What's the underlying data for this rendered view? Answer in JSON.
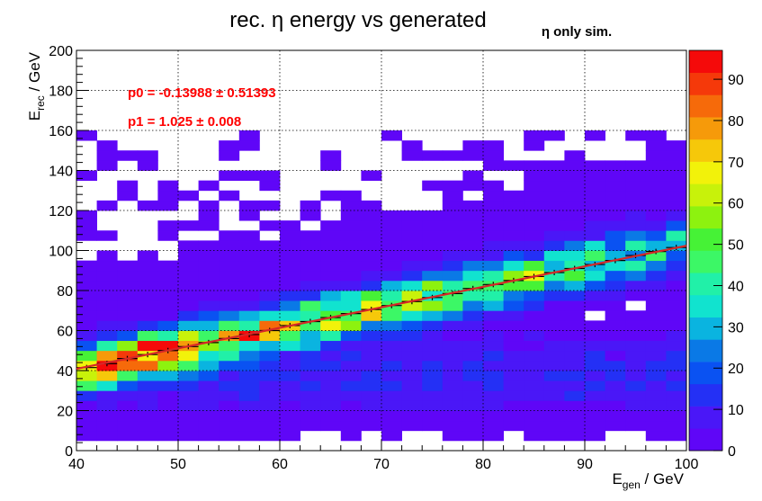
{
  "chart_data": {
    "type": "heatmap",
    "title": "rec. η energy vs generated",
    "annotation": "η only sim.",
    "xlabel": {
      "main": "E",
      "sub": "gen",
      "tail": " / GeV"
    },
    "ylabel": {
      "main": "E",
      "sub": "rec",
      "tail": " / GeV"
    },
    "xlim": [
      40,
      100
    ],
    "ylim": [
      0,
      200
    ],
    "zlim": [
      0,
      97
    ],
    "x_ticks": [
      "40",
      "50",
      "60",
      "70",
      "80",
      "90",
      "100"
    ],
    "y_ticks": [
      "0",
      "20",
      "40",
      "60",
      "80",
      "100",
      "120",
      "140",
      "160",
      "180",
      "200"
    ],
    "z_ticks": [
      "0",
      "10",
      "20",
      "30",
      "40",
      "50",
      "60",
      "70",
      "80",
      "90"
    ],
    "grid": true,
    "bins": {
      "nx": 30,
      "ny": 40
    },
    "fit": {
      "function": "pol1",
      "p0_text": "p0 = -0.13988 ± 0.51393",
      "p1_text": "p1 = 1.025 ± 0.008",
      "p0": -0.13988,
      "p1": 1.025,
      "color": "#d62728",
      "range": [
        40,
        100
      ]
    },
    "profile_points": [
      {
        "x": 41,
        "y": 41.5
      },
      {
        "x": 43,
        "y": 43.5
      },
      {
        "x": 45,
        "y": 46
      },
      {
        "x": 47,
        "y": 48
      },
      {
        "x": 49,
        "y": 50
      },
      {
        "x": 51,
        "y": 52
      },
      {
        "x": 53,
        "y": 54
      },
      {
        "x": 55,
        "y": 56
      },
      {
        "x": 57,
        "y": 58
      },
      {
        "x": 59,
        "y": 60
      },
      {
        "x": 61,
        "y": 62.5
      },
      {
        "x": 63,
        "y": 64.5
      },
      {
        "x": 65,
        "y": 66.5
      },
      {
        "x": 67,
        "y": 68.5
      },
      {
        "x": 69,
        "y": 70.5
      },
      {
        "x": 71,
        "y": 72.5
      },
      {
        "x": 73,
        "y": 74.5
      },
      {
        "x": 75,
        "y": 76.5
      },
      {
        "x": 77,
        "y": 78.5
      },
      {
        "x": 79,
        "y": 81
      },
      {
        "x": 81,
        "y": 83
      },
      {
        "x": 83,
        "y": 85
      },
      {
        "x": 85,
        "y": 87
      },
      {
        "x": 87,
        "y": 89
      },
      {
        "x": 89,
        "y": 91
      },
      {
        "x": 91,
        "y": 93
      },
      {
        "x": 93,
        "y": 95
      },
      {
        "x": 95,
        "y": 97.5
      },
      {
        "x": 97,
        "y": 99.5
      },
      {
        "x": 99,
        "y": 101.5
      }
    ],
    "palette": [
      "#5f06f7",
      "#4a17f7",
      "#2430f5",
      "#0a52f2",
      "#0a79e6",
      "#0ab4e0",
      "#11e3cf",
      "#21f0a8",
      "#3cf766",
      "#46f236",
      "#8df20f",
      "#c8f20a",
      "#f2f20a",
      "#f6c80a",
      "#f69a0a",
      "#f66a0a",
      "#f5390a",
      "#f50a0a"
    ]
  }
}
